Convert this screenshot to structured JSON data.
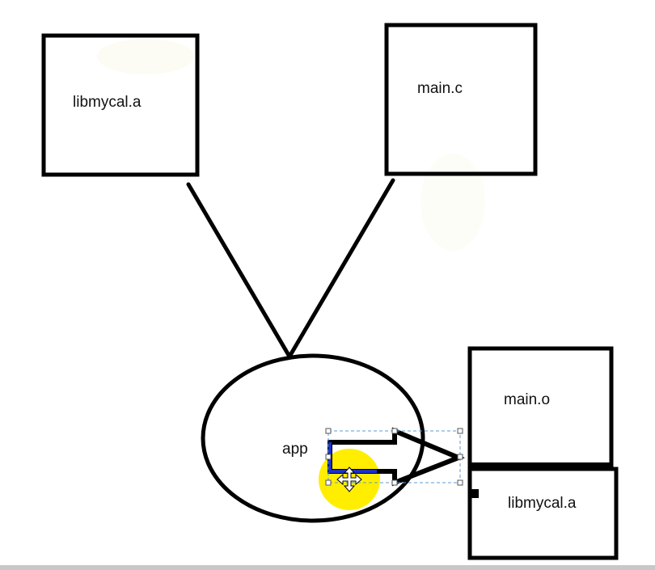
{
  "diagram": {
    "nodes": {
      "lib_input": {
        "label": "libmycal.a"
      },
      "main_c": {
        "label": "main.c"
      },
      "app": {
        "label": "app"
      },
      "main_o": {
        "label": "main.o"
      },
      "lib_output": {
        "label": "libmycal.a"
      }
    }
  },
  "colors": {
    "stroke": "#000000",
    "highlight": "#ffee00",
    "selection": "#5b9bd5",
    "arrow_accent": "#1d2fc9"
  },
  "icons": {
    "cursor": "move-cursor-icon"
  }
}
